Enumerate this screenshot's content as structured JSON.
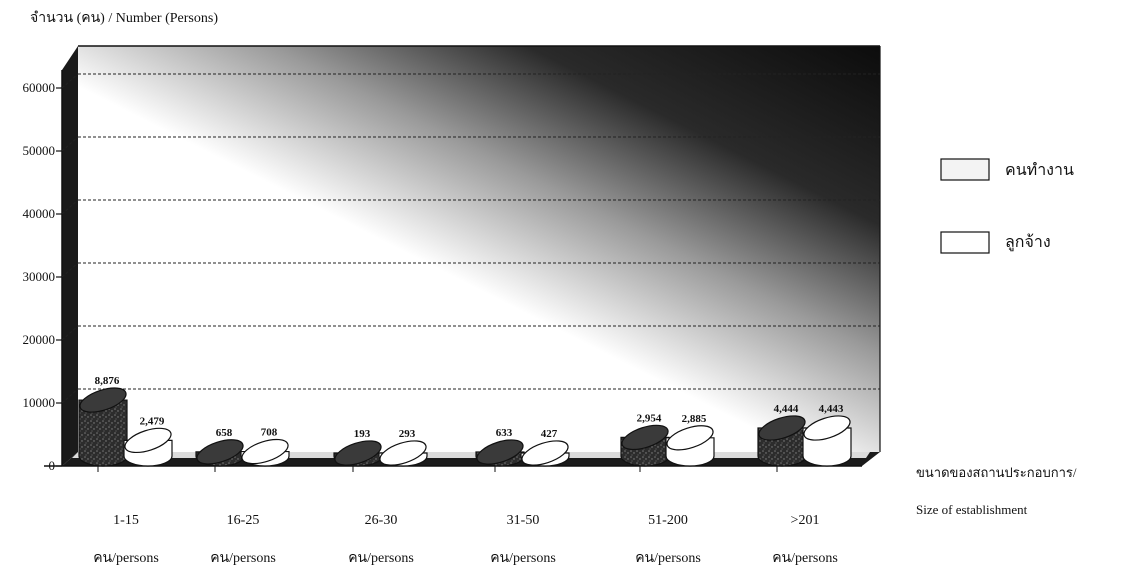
{
  "chart_data": {
    "type": "bar",
    "title": "จำนวน (คน) / Number  (Persons)",
    "ylabel": "จำนวน (คน) / Number  (Persons)",
    "xlabel_line1": "ขนาดของสถานประกอบการ/",
    "xlabel_line2": "Size of establishment",
    "ylim": [
      0,
      65000
    ],
    "yticks": [
      "0",
      "10000",
      "20000",
      "30000",
      "40000",
      "50000",
      "60000"
    ],
    "categories": [
      "1-15",
      "16-25",
      "26-30",
      "31-50",
      "51-200",
      ">201"
    ],
    "category_sub": [
      "คน/persons",
      "คน/persons",
      "คน/persons",
      "คน/persons",
      "คน/persons",
      "คน/persons"
    ],
    "series": [
      {
        "name": "คนทำงาน",
        "values": [
          8876,
          658,
          193,
          633,
          2954,
          4444
        ],
        "labels": [
          "8,876",
          "658",
          "193",
          "633",
          "2,954",
          "4,444"
        ]
      },
      {
        "name": "ลูกจ้าง",
        "values": [
          2479,
          708,
          293,
          427,
          2885,
          4443
        ],
        "labels": [
          "2,479",
          "708",
          "293",
          "427",
          "2,885",
          "4,443"
        ]
      }
    ],
    "legend_position": "right",
    "grid": true
  },
  "colors": {
    "workers": "#2a2a2a",
    "employees": "#ffffff",
    "axis": "#111111"
  }
}
